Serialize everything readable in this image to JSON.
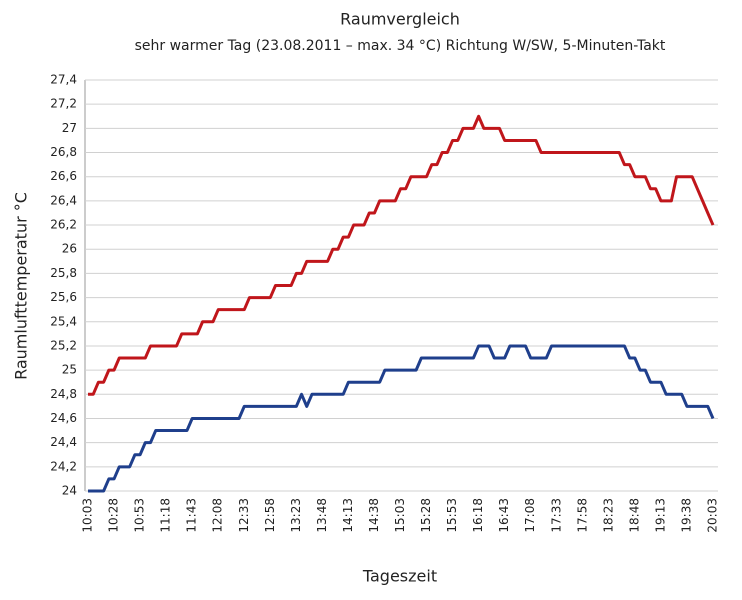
{
  "chart_data": {
    "type": "line",
    "title": "Raumvergleich",
    "subtitle": "sehr warmer Tag (23.08.2011 – max. 34 °C) Richtung W/SW, 5-Minuten-Takt",
    "x_label": "Tageszeit",
    "y_label": "Raumlufttemperatur °C",
    "categories": [
      "10:03",
      null,
      null,
      null,
      null,
      "10:28",
      null,
      null,
      null,
      null,
      "10:53",
      null,
      null,
      null,
      null,
      "11:18",
      null,
      null,
      null,
      null,
      "11:43",
      null,
      null,
      null,
      null,
      "12:08",
      null,
      null,
      null,
      null,
      "12:33",
      null,
      null,
      null,
      null,
      "12:58",
      null,
      null,
      null,
      null,
      "13:23",
      null,
      null,
      null,
      null,
      "13:48",
      null,
      null,
      null,
      null,
      "14:13",
      null,
      null,
      null,
      null,
      "14:38",
      null,
      null,
      null,
      null,
      "15:03",
      null,
      null,
      null,
      null,
      "15:28",
      null,
      null,
      null,
      null,
      "15:53",
      null,
      null,
      null,
      null,
      "16:18",
      null,
      null,
      null,
      null,
      "16:43",
      null,
      null,
      null,
      null,
      "17:08",
      null,
      null,
      null,
      null,
      "17:33",
      null,
      null,
      null,
      null,
      "17:58",
      null,
      null,
      null,
      null,
      "18:23",
      null,
      null,
      null,
      null,
      "18:48",
      null,
      null,
      null,
      null,
      "19:13",
      null,
      null,
      null,
      null,
      "19:38",
      null,
      null,
      null,
      null,
      "20:03"
    ],
    "series": [
      {
        "color": "#c0161b",
        "values": [
          24.8,
          24.8,
          24.9,
          24.9,
          25.0,
          25.0,
          25.1,
          25.1,
          25.1,
          25.1,
          25.1,
          25.1,
          25.2,
          25.2,
          25.2,
          25.2,
          25.2,
          25.2,
          25.3,
          25.3,
          25.3,
          25.3,
          25.4,
          25.4,
          25.4,
          25.5,
          25.5,
          25.5,
          25.5,
          25.5,
          25.5,
          25.6,
          25.6,
          25.6,
          25.6,
          25.6,
          25.7,
          25.7,
          25.7,
          25.7,
          25.8,
          25.8,
          25.9,
          25.9,
          25.9,
          25.9,
          25.9,
          26.0,
          26.0,
          26.1,
          26.1,
          26.2,
          26.2,
          26.2,
          26.3,
          26.3,
          26.4,
          26.4,
          26.4,
          26.4,
          26.5,
          26.5,
          26.6,
          26.6,
          26.6,
          26.6,
          26.7,
          26.7,
          26.8,
          26.8,
          26.9,
          26.9,
          27.0,
          27.0,
          27.0,
          27.1,
          27.0,
          27.0,
          27.0,
          27.0,
          26.9,
          26.9,
          26.9,
          26.9,
          26.9,
          26.9,
          26.9,
          26.8,
          26.8,
          26.8,
          26.8,
          26.8,
          26.8,
          26.8,
          26.8,
          26.8,
          26.8,
          26.8,
          26.8,
          26.8,
          26.8,
          26.8,
          26.8,
          26.7,
          26.7,
          26.6,
          26.6,
          26.6,
          26.5,
          26.5,
          26.4,
          26.4,
          26.4,
          26.6,
          26.6,
          26.6,
          26.6,
          26.5,
          26.4,
          26.3,
          26.2
        ]
      },
      {
        "color": "#1f3f8c",
        "values": [
          24.0,
          24.0,
          24.0,
          24.0,
          24.1,
          24.1,
          24.2,
          24.2,
          24.2,
          24.3,
          24.3,
          24.4,
          24.4,
          24.5,
          24.5,
          24.5,
          24.5,
          24.5,
          24.5,
          24.5,
          24.6,
          24.6,
          24.6,
          24.6,
          24.6,
          24.6,
          24.6,
          24.6,
          24.6,
          24.6,
          24.7,
          24.7,
          24.7,
          24.7,
          24.7,
          24.7,
          24.7,
          24.7,
          24.7,
          24.7,
          24.7,
          24.8,
          24.7,
          24.8,
          24.8,
          24.8,
          24.8,
          24.8,
          24.8,
          24.8,
          24.9,
          24.9,
          24.9,
          24.9,
          24.9,
          24.9,
          24.9,
          25.0,
          25.0,
          25.0,
          25.0,
          25.0,
          25.0,
          25.0,
          25.1,
          25.1,
          25.1,
          25.1,
          25.1,
          25.1,
          25.1,
          25.1,
          25.1,
          25.1,
          25.1,
          25.2,
          25.2,
          25.2,
          25.1,
          25.1,
          25.1,
          25.2,
          25.2,
          25.2,
          25.2,
          25.1,
          25.1,
          25.1,
          25.1,
          25.2,
          25.2,
          25.2,
          25.2,
          25.2,
          25.2,
          25.2,
          25.2,
          25.2,
          25.2,
          25.2,
          25.2,
          25.2,
          25.2,
          25.2,
          25.1,
          25.1,
          25.0,
          25.0,
          24.9,
          24.9,
          24.9,
          24.8,
          24.8,
          24.8,
          24.8,
          24.7,
          24.7,
          24.7,
          24.7,
          24.7,
          24.6
        ]
      }
    ],
    "ylim": [
      24,
      27.4
    ],
    "yticks": [
      24,
      {
        "value": 24.2,
        "label": "24,2"
      },
      {
        "value": 24.4,
        "label": "24,4"
      },
      {
        "value": 24.6,
        "label": "24,6"
      },
      {
        "value": 24.8,
        "label": "24,8"
      },
      25,
      {
        "value": 25.2,
        "label": "25,2"
      },
      {
        "value": 25.4,
        "label": "25,4"
      },
      {
        "value": 25.6,
        "label": "25,6"
      },
      {
        "value": 25.8,
        "label": "25,8"
      },
      26,
      {
        "value": 26.2,
        "label": "26,2"
      },
      {
        "value": 26.4,
        "label": "26,4"
      },
      {
        "value": 26.6,
        "label": "26,6"
      },
      {
        "value": 26.8,
        "label": "26,8"
      },
      27,
      {
        "value": 27.2,
        "label": "27,2"
      },
      {
        "value": 27.4,
        "label": "27,4"
      }
    ],
    "grid": true
  }
}
